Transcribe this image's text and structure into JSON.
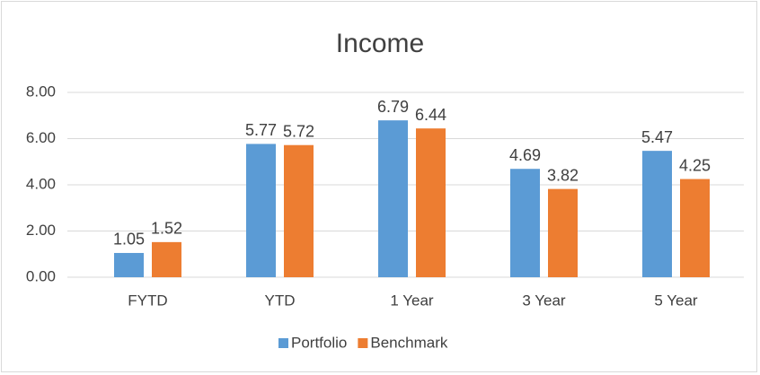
{
  "chart_data": {
    "type": "bar",
    "title": "Income",
    "categories": [
      "FYTD",
      "YTD",
      "1 Year",
      "3 Year",
      "5 Year"
    ],
    "series": [
      {
        "name": "Portfolio",
        "color": "#5b9bd5",
        "values": [
          1.05,
          5.77,
          6.79,
          4.69,
          5.47
        ]
      },
      {
        "name": "Benchmark",
        "color": "#ed7d31",
        "values": [
          1.52,
          5.72,
          6.44,
          3.82,
          4.25
        ]
      }
    ],
    "ylim": [
      0,
      8
    ],
    "yticks": [
      {
        "value": 0,
        "label": "0.00"
      },
      {
        "value": 2,
        "label": "2.00"
      },
      {
        "value": 4,
        "label": "4.00"
      },
      {
        "value": 6,
        "label": "6.00"
      },
      {
        "value": 8,
        "label": "8.00"
      }
    ],
    "grid": true,
    "legend": "bottom"
  }
}
